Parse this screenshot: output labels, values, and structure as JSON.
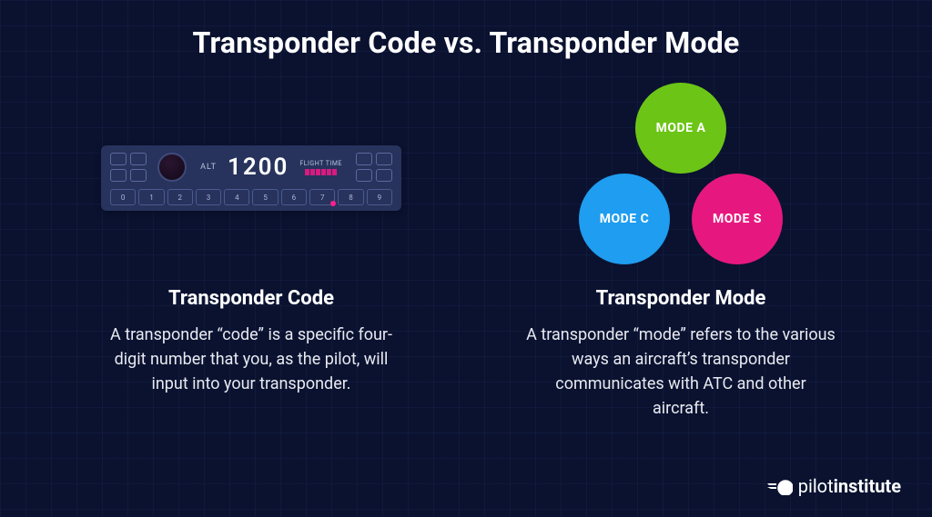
{
  "title": "Transponder Code vs. Transponder Mode",
  "colors": {
    "background": "#0a1230",
    "device_body": "#27335c",
    "mode_a": "#6cc516",
    "mode_c": "#1f9df0",
    "mode_s": "#e6187f",
    "text": "#ffffff",
    "body_text": "#e8eaf0"
  },
  "left": {
    "heading": "Transponder Code",
    "body": "A transponder “code” is a specific four-digit number that you, as the pilot, will input into your transponder.",
    "device": {
      "alt_label": "ALT",
      "code": "1200",
      "flight_time_label": "FLIGHT TIME",
      "flight_time_bars": 6,
      "digits": [
        "0",
        "1",
        "2",
        "3",
        "4",
        "5",
        "6",
        "7",
        "8",
        "9"
      ],
      "pink_dot_after": "7"
    }
  },
  "right": {
    "heading": "Transponder Mode",
    "body": "A transponder “mode” refers to the various ways an aircraft’s transponder communicates with ATC and other aircraft.",
    "modes": [
      {
        "label": "MODE A",
        "color": "#6cc516",
        "pos": "a"
      },
      {
        "label": "MODE C",
        "color": "#1f9df0",
        "pos": "c"
      },
      {
        "label": "MODE S",
        "color": "#e6187f",
        "pos": "s"
      }
    ]
  },
  "logo": {
    "brand_light": "pilot",
    "brand_bold": "institute"
  }
}
